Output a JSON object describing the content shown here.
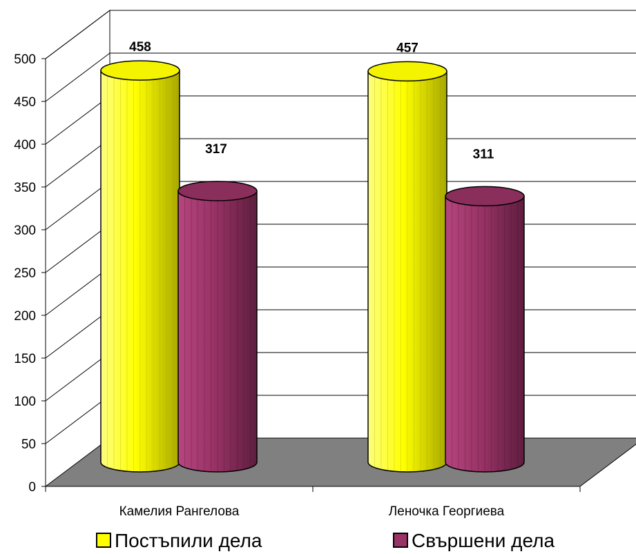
{
  "chart_data": {
    "type": "bar",
    "style": "3d-cylinder",
    "categories": [
      "Камелия Рангелова",
      "Леночка Георгиева"
    ],
    "series": [
      {
        "name": "Постъпили дела",
        "values": [
          458,
          457
        ],
        "color": "#FFFF00"
      },
      {
        "name": "Свършени дела",
        "values": [
          317,
          311
        ],
        "color": "#993366"
      }
    ],
    "y_ticks": [
      "0",
      "50",
      "100",
      "150",
      "200",
      "250",
      "300",
      "350",
      "400",
      "450",
      "500"
    ],
    "ylim": [
      0,
      500
    ],
    "grid": true,
    "legend_position": "bottom",
    "floor_color": "#808080"
  }
}
